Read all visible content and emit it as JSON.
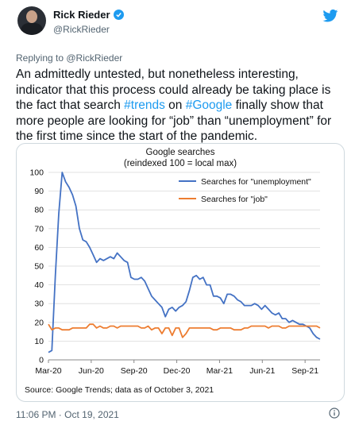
{
  "author": {
    "name": "Rick Rieder",
    "handle": "@RickRieder"
  },
  "icons": {
    "verified": "verified-badge-icon",
    "twitter": "twitter-bird-icon",
    "info": "info-icon"
  },
  "colors": {
    "link": "#1d9bf0",
    "unemployment_series": "#4472c4",
    "job_series": "#ed7d31"
  },
  "replying_to": "Replying to @RickRieder",
  "text": {
    "part1": "An admittedly untested, but nonetheless interesting, indicator that this process could already be taking place is the fact that search ",
    "hashtag1": "#trends",
    "part2": " on ",
    "hashtag2": "#Google",
    "part3": " finally show that more people are looking for “job” than “unemployment” for the first time since the start of the pandemic."
  },
  "chart_data": {
    "type": "line",
    "title": "Google searches",
    "subtitle": "(reindexed 100 = local max)",
    "xlabel": "",
    "ylabel": "",
    "ylim": [
      0,
      100
    ],
    "yticks": [
      "0",
      "10",
      "20",
      "30",
      "40",
      "50",
      "60",
      "70",
      "80",
      "90",
      "100"
    ],
    "xticks": [
      "Mar-20",
      "Jun-20",
      "Sep-20",
      "Dec-20",
      "Mar-21",
      "Jun-21",
      "Sep-21"
    ],
    "grid": true,
    "legend": "top-right",
    "source": "Source: Google Trends; data as of October 3, 2021",
    "series": [
      {
        "name": "Searches for \"unemployment\"",
        "color": "#4472c4",
        "values": [
          4,
          5,
          45,
          78,
          100,
          95,
          92,
          88,
          82,
          70,
          64,
          63,
          60,
          56,
          52,
          54,
          53,
          54,
          55,
          54,
          57,
          55,
          53,
          52,
          44,
          43,
          43,
          44,
          42,
          38,
          34,
          32,
          30,
          28,
          23,
          27,
          28,
          26,
          28,
          29,
          31,
          37,
          44,
          45,
          43,
          44,
          40,
          40,
          34,
          34,
          33,
          30,
          35,
          35,
          34,
          32,
          31,
          29,
          29,
          29,
          30,
          29,
          27,
          29,
          27,
          25,
          24,
          25,
          22,
          22,
          20,
          21,
          20,
          19,
          19,
          18,
          17,
          14,
          12,
          11
        ]
      },
      {
        "name": "Searches for \"job\"",
        "color": "#ed7d31",
        "values": [
          19,
          16,
          17,
          17,
          16,
          16,
          16,
          17,
          17,
          17,
          17,
          17,
          19,
          19,
          17,
          18,
          17,
          17,
          18,
          18,
          17,
          18,
          18,
          18,
          18,
          18,
          18,
          17,
          17,
          18,
          16,
          17,
          17,
          14,
          17,
          17,
          13,
          17,
          17,
          12,
          14,
          17,
          17,
          17,
          17,
          17,
          17,
          17,
          16,
          16,
          17,
          17,
          17,
          17,
          16,
          16,
          16,
          17,
          17,
          18,
          18,
          18,
          18,
          18,
          17,
          18,
          18,
          18,
          17,
          17,
          18,
          18,
          18,
          18,
          18,
          18,
          18,
          18,
          18,
          17
        ]
      }
    ]
  },
  "footer": {
    "timestamp": "11:06 PM · Oct 19, 2021"
  }
}
